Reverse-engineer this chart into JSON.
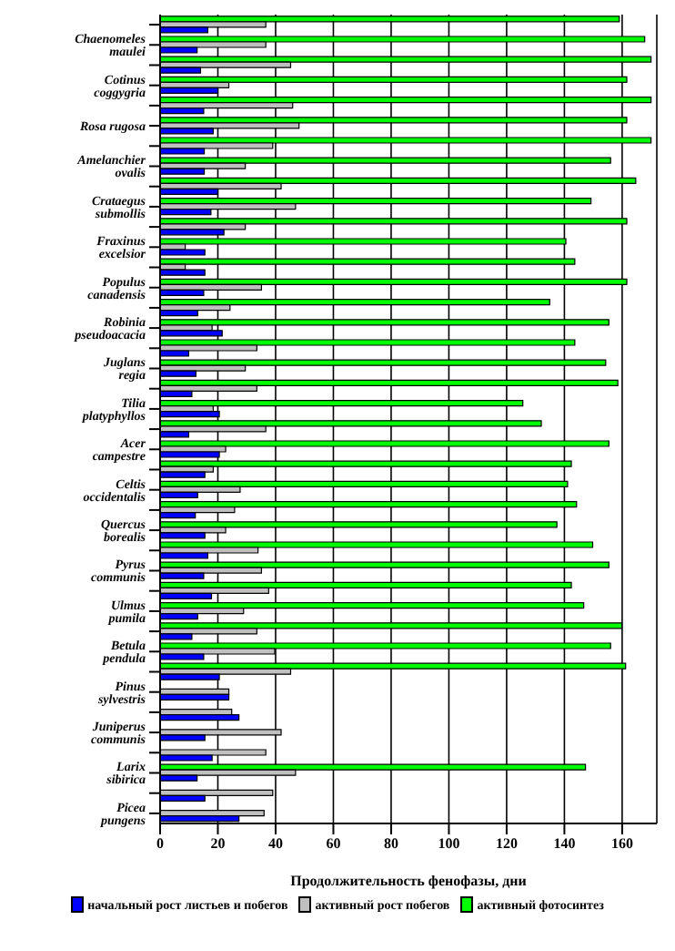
{
  "chart_data": {
    "type": "bar",
    "orientation": "horizontal",
    "xlabel": "Продолжительность фенофазы, дни",
    "categories": [
      null,
      "Chaenomeles maulei",
      null,
      "Cotinus coggygria",
      null,
      "Rosa rugosa",
      null,
      "Amelanchier ovalis",
      null,
      "Crataegus submollis",
      null,
      "Fraxinus excelsior",
      null,
      "Populus canadensis",
      null,
      "Robinia pseudoacacia",
      null,
      "Juglans regia",
      null,
      "Tilia platyphyllos",
      null,
      "Acer campestre",
      null,
      "Celtis occidentalis",
      null,
      "Quercus borealis",
      null,
      "Pyrus communis",
      null,
      "Ulmus pumila",
      null,
      "Betula pendula",
      null,
      "Pinus sylvestris",
      null,
      "Juniperus communis",
      null,
      "Larix sibirica",
      null,
      "Picea pungens"
    ],
    "series": [
      {
        "name": "начальный рост листьев и побегов",
        "color": "#0000ff",
        "values": [
          16.5,
          12.8,
          14,
          20,
          15.1,
          18.4,
          15.3,
          15.3,
          20,
          17.6,
          22.1,
          15.5,
          15.5,
          15.1,
          13,
          21.5,
          9.9,
          12.4,
          11,
          20.5,
          9.9,
          20.5,
          15.5,
          13,
          12.2,
          15.5,
          16.5,
          15.1,
          17.8,
          13,
          11,
          15.1,
          20.5,
          23.8,
          27.3,
          15.5,
          18,
          12.8,
          15.5,
          27.3
        ]
      },
      {
        "name": "активный рост побегов",
        "color": "#c0c0c0",
        "values": [
          36.6,
          36.6,
          45.2,
          23.8,
          45.9,
          48.1,
          39,
          29.5,
          41.9,
          46.9,
          29.5,
          8.7,
          8.7,
          35.1,
          24.2,
          18,
          33.5,
          29.5,
          33.5,
          18.4,
          36.6,
          22.7,
          18.4,
          27.7,
          25.8,
          22.7,
          33.9,
          35.1,
          37.6,
          28.9,
          33.5,
          39.7,
          45.2,
          23.8,
          24.8,
          41.9,
          36.6,
          46.9,
          39,
          36
        ]
      },
      {
        "name": "активный фотосинтез",
        "color": "#00ff00",
        "values": [
          159,
          167.8,
          170,
          161.6,
          170,
          161.6,
          170,
          156,
          164.7,
          149.2,
          161.6,
          140.5,
          143.6,
          161.6,
          134.9,
          155.4,
          143.6,
          154.3,
          158.5,
          125.6,
          132,
          155.4,
          142.4,
          141.1,
          144.2,
          137.4,
          149.8,
          155.4,
          142.4,
          146.7,
          159.9,
          156,
          161.2,
          null,
          null,
          null,
          null,
          147.3,
          null,
          null
        ]
      }
    ],
    "xlim": [
      0,
      172
    ],
    "xticks": [
      0,
      20,
      40,
      60,
      80,
      100,
      120,
      140,
      160
    ],
    "grid": "x",
    "legend": "bottom"
  }
}
